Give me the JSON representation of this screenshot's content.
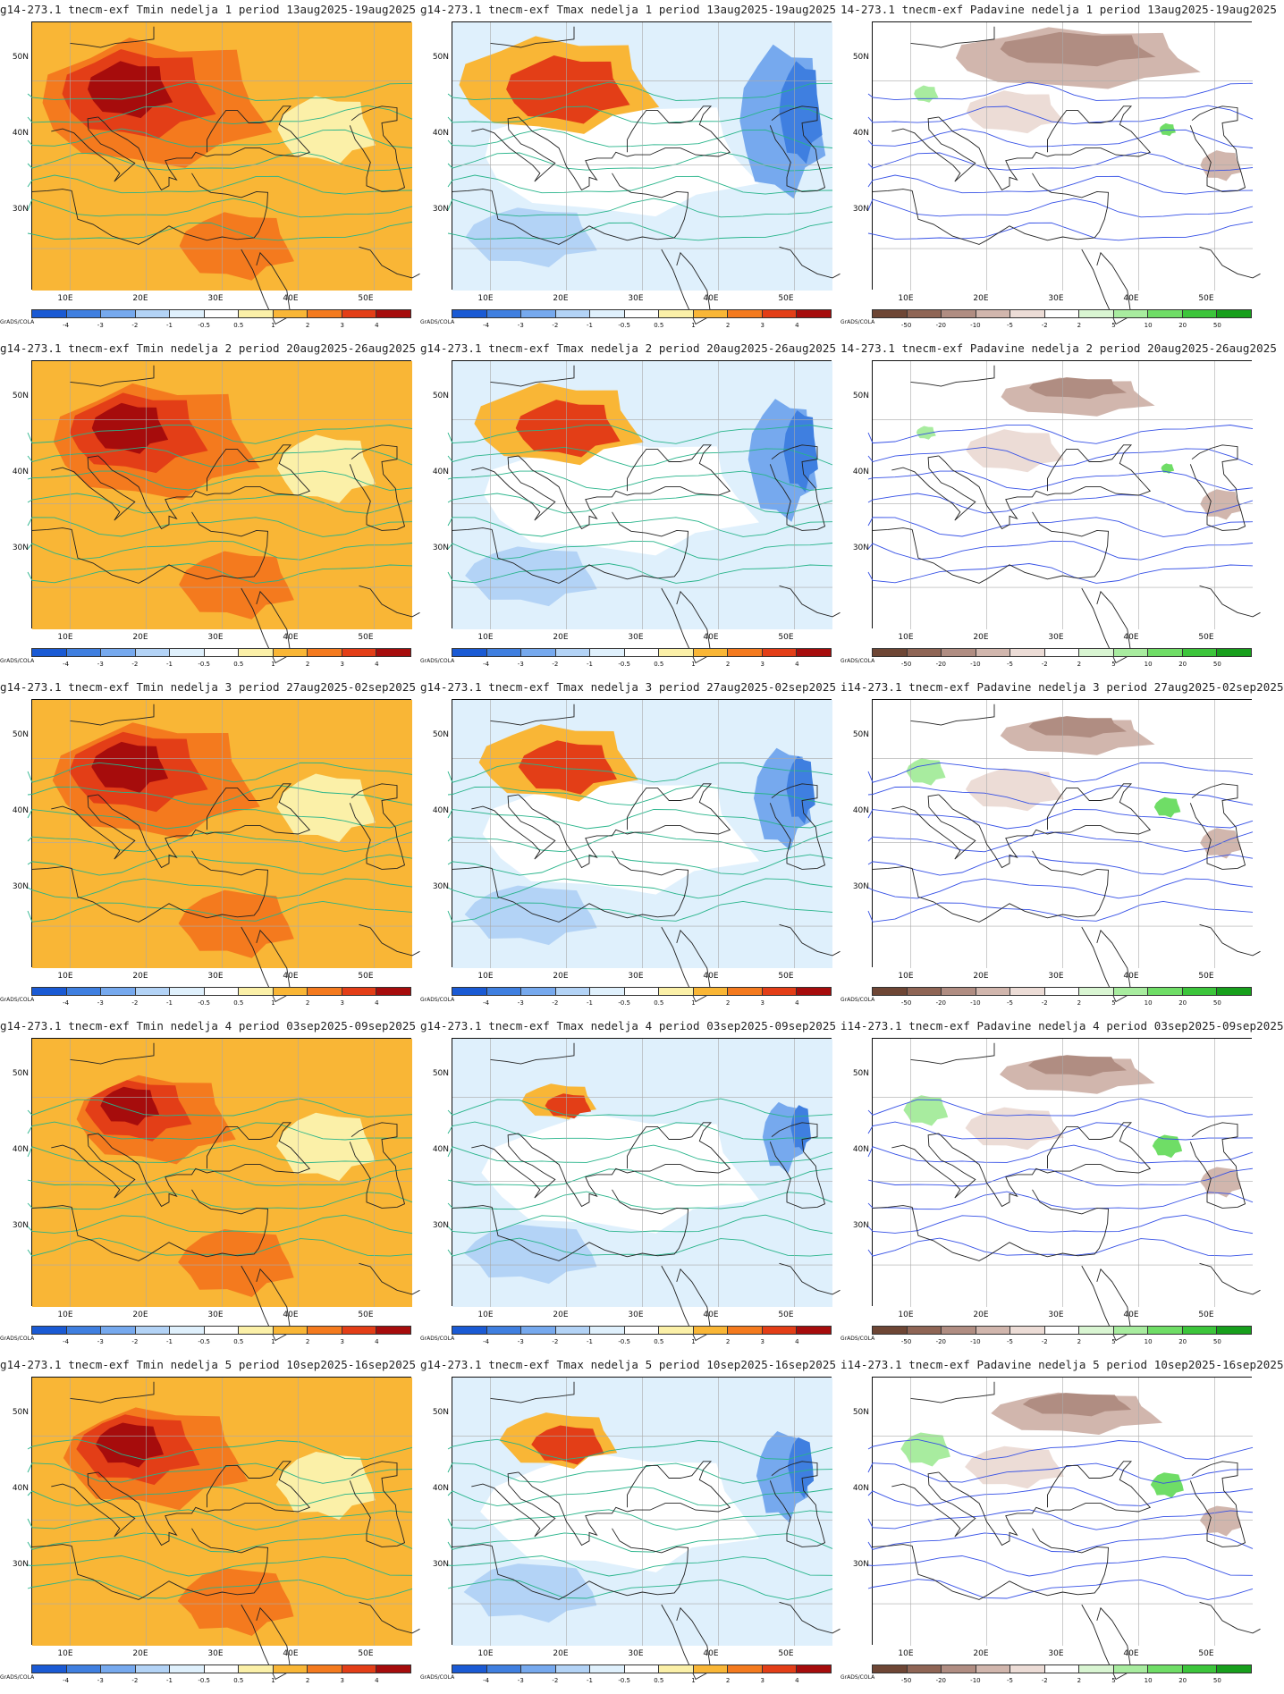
{
  "grads_label": "GrADS/COLA",
  "lat_labels": [
    "50N",
    "40N",
    "30N"
  ],
  "lon_labels": [
    "10E",
    "20E",
    "30E",
    "40E",
    "50E"
  ],
  "temp_scale": {
    "labels": [
      "-4",
      "-3",
      "-2",
      "-1",
      "-0.5",
      "0.5",
      "1",
      "2",
      "3",
      "4"
    ],
    "colors": [
      "#1a5ad4",
      "#3f7fe0",
      "#76a9ee",
      "#b3d3f6",
      "#dff0fc",
      "#ffffff",
      "#fbf0a8",
      "#f9b636",
      "#f47a1e",
      "#e33e17",
      "#a60c0c"
    ],
    "contour_color": "#27b48a"
  },
  "precip_scale": {
    "labels": [
      "-50",
      "-20",
      "-10",
      "-5",
      "-2",
      "2",
      "5",
      "10",
      "20",
      "50"
    ],
    "colors": [
      "#6e4635",
      "#8f6555",
      "#b08d82",
      "#d1b6ad",
      "#ecdcd6",
      "#ffffff",
      "#d9f5d2",
      "#a8ec9f",
      "#6fdd66",
      "#3cc53b",
      "#179f1c"
    ],
    "contour_color": "#3550e6"
  },
  "rows": [
    {
      "week": "1",
      "tmin": "g14-273.1 tnecm-exf Tmin nedelja 1 period 13aug2025-19aug2025",
      "tmax": "g14-273.1 tnecm-exf Tmax nedelja 1 period 13aug2025-19aug2025",
      "pad": "14-273.1 tnecm-exf Padavine nedelja 1 period 13aug2025-19aug2025",
      "tmin_hot": 0.95,
      "tmax_hot": 0.95,
      "tmax_cold": 0.75,
      "pad_dry": 0.8,
      "pad_wet": 0.25
    },
    {
      "week": "2",
      "tmin": "g14-273.1 tnecm-exf Tmin nedelja 2 period 20aug2025-26aug2025",
      "tmax": "g14-273.1 tnecm-exf Tmax nedelja 2 period 20aug2025-26aug2025",
      "pad": "14-273.1 tnecm-exf Padavine nedelja 2 period 20aug2025-26aug2025",
      "tmin_hot": 0.85,
      "tmax_hot": 0.8,
      "tmax_cold": 0.6,
      "pad_dry": 0.5,
      "pad_wet": 0.2
    },
    {
      "week": "3",
      "tmin": "g14-273.1 tnecm-exf Tmin nedelja 3 period 27aug2025-02sep2025",
      "tmax": "g14-273.1 tnecm-exf Tmax nedelja 3 period 27aug2025-02sep2025",
      "pad": "i14-273.1 tnecm-exf Padavine nedelja 3 period 27aug2025-02sep2025",
      "tmin_hot": 0.85,
      "tmax_hot": 0.75,
      "tmax_cold": 0.5,
      "pad_dry": 0.5,
      "pad_wet": 0.4
    },
    {
      "week": "4",
      "tmin": "g14-273.1 tnecm-exf Tmin nedelja 4 period 03sep2025-09sep2025",
      "tmax": "g14-273.1 tnecm-exf Tmax nedelja 4 period 03sep2025-09sep2025",
      "pad": "i14-273.1 tnecm-exf Padavine nedelja 4 period 03sep2025-09sep2025",
      "tmin_hot": 0.65,
      "tmax_hot": 0.35,
      "tmax_cold": 0.35,
      "pad_dry": 0.5,
      "pad_wet": 0.45
    },
    {
      "week": "5",
      "tmin": "g14-273.1 tnecm-exf Tmin nedelja 5 period 10sep2025-16sep2025",
      "tmax": "g14-273.1 tnecm-exf Tmax nedelja 5 period 10sep2025-16sep2025",
      "pad": "i14-273.1 tnecm-exf Padavine nedelja 5 period 10sep2025-16sep2025",
      "tmin_hot": 0.75,
      "tmax_hot": 0.55,
      "tmax_cold": 0.45,
      "pad_dry": 0.55,
      "pad_wet": 0.5
    }
  ]
}
